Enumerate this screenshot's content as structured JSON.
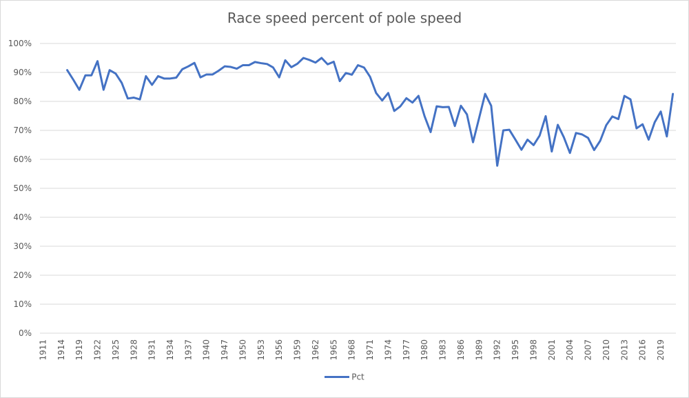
{
  "chart_data": {
    "type": "line",
    "title": "Race speed percent of pole speed",
    "xlabel": "",
    "ylabel": "",
    "ylim": [
      0,
      1.0
    ],
    "yticks": [
      0,
      0.1,
      0.2,
      0.3,
      0.4,
      0.5,
      0.6,
      0.7,
      0.8,
      0.9,
      1.0
    ],
    "ytick_labels": [
      "0%",
      "10%",
      "20%",
      "30%",
      "40%",
      "50%",
      "60%",
      "70%",
      "80%",
      "90%",
      "100%"
    ],
    "grid": true,
    "legend": {
      "position": "bottom",
      "entries": [
        "Pct"
      ]
    },
    "label_every": 3,
    "categories": [
      "1911",
      "1912",
      "1913",
      "1914",
      "1915",
      "1916",
      "1919",
      "1920",
      "1921",
      "1922",
      "1923",
      "1924",
      "1925",
      "1926",
      "1927",
      "1928",
      "1929",
      "1930",
      "1931",
      "1932",
      "1933",
      "1934",
      "1935",
      "1936",
      "1937",
      "1938",
      "1939",
      "1940",
      "1941",
      "1946",
      "1947",
      "1948",
      "1949",
      "1950",
      "1951",
      "1952",
      "1953",
      "1954",
      "1955",
      "1956",
      "1957",
      "1958",
      "1959",
      "1960",
      "1961",
      "1962",
      "1963",
      "1964",
      "1965",
      "1966",
      "1967",
      "1968",
      "1969",
      "1970",
      "1971",
      "1972",
      "1973",
      "1974",
      "1975",
      "1976",
      "1977",
      "1978",
      "1979",
      "1980",
      "1981",
      "1982",
      "1983",
      "1984",
      "1985",
      "1986",
      "1987",
      "1988",
      "1989",
      "1990",
      "1991",
      "1992",
      "1993",
      "1994",
      "1995",
      "1996",
      "1997",
      "1998",
      "1999",
      "2000",
      "2001",
      "2002",
      "2003",
      "2004",
      "2005",
      "2006",
      "2007",
      "2008",
      "2009",
      "2010",
      "2011",
      "2012",
      "2013",
      "2014",
      "2015",
      "2016",
      "2017",
      "2018",
      "2019",
      "2020",
      "2021"
    ],
    "series": [
      {
        "name": "Pct",
        "color": "#4472c4",
        "values": [
          null,
          null,
          null,
          null,
          0.908,
          0.875,
          0.84,
          0.89,
          0.89,
          0.939,
          0.84,
          0.908,
          0.896,
          0.864,
          0.81,
          0.813,
          0.807,
          0.887,
          0.857,
          0.887,
          0.879,
          0.879,
          0.882,
          0.911,
          0.921,
          0.933,
          0.883,
          0.893,
          0.893,
          0.906,
          0.921,
          0.919,
          0.913,
          0.925,
          0.925,
          0.936,
          0.932,
          0.929,
          0.917,
          0.883,
          0.942,
          0.918,
          0.93,
          0.95,
          0.943,
          0.934,
          0.95,
          0.928,
          0.937,
          0.87,
          0.898,
          0.892,
          0.925,
          0.917,
          0.885,
          0.829,
          0.803,
          0.829,
          0.767,
          0.783,
          0.811,
          0.796,
          0.819,
          0.749,
          0.694,
          0.783,
          0.78,
          0.781,
          0.715,
          0.785,
          0.755,
          0.659,
          0.742,
          0.826,
          0.785,
          0.578,
          0.7,
          0.702,
          0.668,
          0.633,
          0.668,
          0.649,
          0.682,
          0.749,
          0.627,
          0.719,
          0.676,
          0.622,
          0.691,
          0.686,
          0.674,
          0.632,
          0.664,
          0.718,
          0.748,
          0.739,
          0.819,
          0.807,
          0.707,
          0.721,
          0.668,
          0.728,
          0.765,
          0.679,
          0.826
        ]
      }
    ]
  }
}
